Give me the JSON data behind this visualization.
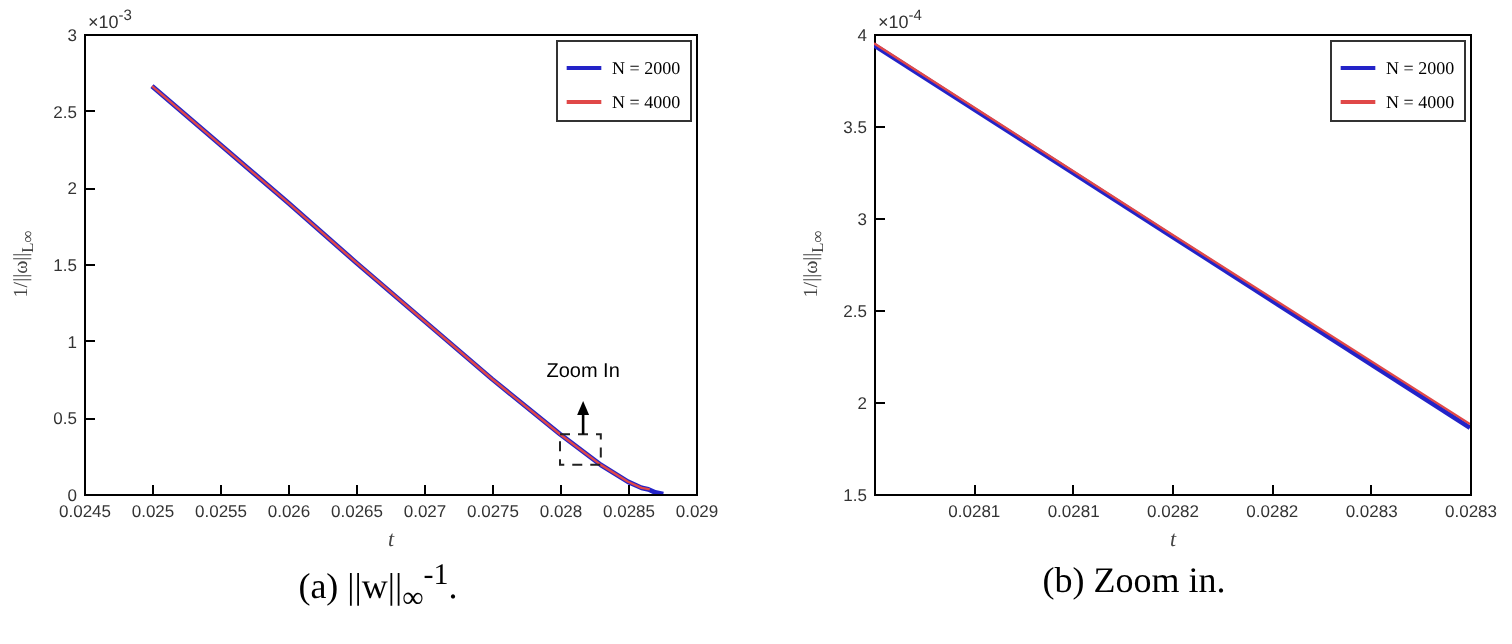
{
  "chart_data": [
    {
      "type": "line",
      "title": "(a) ||w||$_{∞}$$^{-1}$.",
      "xlabel": "t",
      "ylabel": "1/||ω||$_{L∞}$",
      "legend": "top right",
      "line_style": "solid",
      "annotations": [
        "×10$^{-3}$",
        {
          "text": "Zoom In",
          "x": 0.02817,
          "y": 0.58
        }
      ],
      "xlim": [
        0.0245,
        0.029
      ],
      "xticks": [
        0.0245,
        0.025,
        0.0255,
        0.026,
        0.0265,
        0.027,
        0.0275,
        0.028,
        0.0285,
        0.029
      ],
      "ylim": [
        0,
        3
      ],
      "yticks": [
        0,
        0.5,
        1,
        1.5,
        2,
        2.5,
        3
      ],
      "series": [
        {
          "name": "N = 2000",
          "color": "#2323c8",
          "x": [
            0.025,
            0.0255,
            0.026,
            0.0265,
            0.027,
            0.0275,
            0.028,
            0.0283,
            0.0285,
            0.0286,
            0.02865,
            0.0287,
            0.02876
          ],
          "values": [
            2.66,
            2.28,
            1.9,
            1.51,
            1.13,
            0.75,
            0.39,
            0.19,
            0.08,
            0.04,
            0.03,
            0.01,
            0
          ]
        },
        {
          "name": "N = 4000",
          "color": "#e04848",
          "x": [
            0.025,
            0.0255,
            0.026,
            0.0265,
            0.027,
            0.0275,
            0.028,
            0.0283,
            0.0285,
            0.0286,
            0.02866
          ],
          "values": [
            2.66,
            2.28,
            1.9,
            1.51,
            1.13,
            0.75,
            0.39,
            0.19,
            0.08,
            0.04,
            0.03
          ]
        }
      ]
    },
    {
      "type": "line",
      "title": "(b) Zoom in.",
      "xlabel": "t",
      "ylabel": "1/||ω||$_{L∞}$",
      "legend": "top right",
      "line_style": "solid",
      "annotations": [
        "×10$^{-4}$"
      ],
      "xlim": [
        0.028,
        0.0283
      ],
      "xticks": [
        {
          "value": 0.02805,
          "label": "0.0281"
        },
        {
          "value": 0.0281,
          "label": "0.0281"
        },
        {
          "value": 0.02815,
          "label": "0.0282"
        },
        {
          "value": 0.0282,
          "label": "0.0282"
        },
        {
          "value": 0.02825,
          "label": "0.0283"
        },
        {
          "value": 0.0283,
          "label": "0.0283"
        }
      ],
      "ylim": [
        1.5,
        4
      ],
      "yticks": [
        1.5,
        2,
        2.5,
        3,
        3.5,
        4
      ],
      "series": [
        {
          "name": "N = 2000",
          "color": "#2323c8",
          "x": [
            0.028,
            0.02815,
            0.0283
          ],
          "values": [
            3.94,
            2.9,
            1.86
          ]
        },
        {
          "name": "N = 4000",
          "color": "#e04848",
          "x": [
            0.028,
            0.02815,
            0.0283
          ],
          "values": [
            3.95,
            2.91,
            1.88
          ]
        }
      ]
    }
  ]
}
